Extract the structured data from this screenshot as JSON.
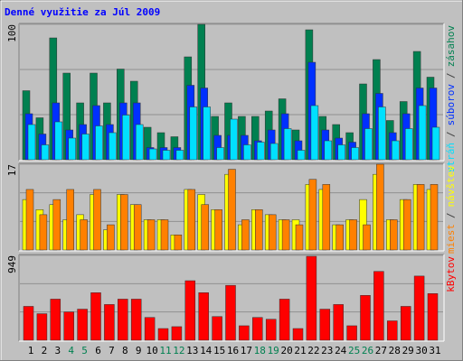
{
  "chart_data": [
    {
      "type": "bar",
      "title": "Denné využitie za Júl 2009",
      "ylim": [
        0,
        100
      ],
      "yticks": [
        100
      ],
      "legend_separator": "/",
      "series": [
        {
          "name": "stráň",
          "color": "#00e0ff",
          "values": [
            26,
            11,
            28,
            16,
            19,
            25,
            20,
            33,
            26,
            8,
            7,
            7,
            39,
            39,
            9,
            30,
            11,
            13,
            12,
            23,
            7,
            40,
            14,
            11,
            9,
            23,
            39,
            14,
            23,
            40,
            24
          ]
        },
        {
          "name": "súborov",
          "color": "#0030ff",
          "values": [
            34,
            19,
            42,
            22,
            26,
            40,
            26,
            42,
            42,
            9,
            9,
            9,
            55,
            53,
            18,
            18,
            18,
            14,
            22,
            34,
            14,
            72,
            22,
            16,
            13,
            34,
            49,
            20,
            34,
            53,
            53
          ]
        },
        {
          "name": "zásahov",
          "color": "#008050",
          "values": [
            51,
            31,
            90,
            64,
            42,
            64,
            42,
            67,
            58,
            24,
            20,
            17,
            76,
            100,
            32,
            42,
            32,
            32,
            36,
            45,
            22,
            96,
            32,
            26,
            20,
            56,
            74,
            29,
            43,
            80,
            61
          ]
        }
      ]
    },
    {
      "type": "bar",
      "ylim": [
        0,
        17
      ],
      "yticks": [
        17
      ],
      "legend_separator": "/",
      "series": [
        {
          "name": "miest",
          "color": "#ff8000",
          "values": [
            12,
            7,
            10,
            12,
            6,
            12,
            5,
            11,
            9,
            6,
            6,
            3,
            12,
            9,
            8,
            16,
            6,
            8,
            7,
            6,
            5,
            14,
            13,
            5,
            6,
            5,
            17,
            6,
            10,
            13,
            13
          ]
        },
        {
          "name": "návštev",
          "color": "#ffff00",
          "values": [
            10,
            8,
            9,
            6,
            7,
            11,
            4,
            11,
            9,
            6,
            6,
            3,
            12,
            11,
            8,
            15,
            5,
            8,
            7,
            6,
            6,
            13,
            12,
            5,
            6,
            10,
            15,
            6,
            10,
            13,
            12
          ]
        }
      ]
    },
    {
      "type": "bar",
      "ylim": [
        0,
        949
      ],
      "yticks": [
        949
      ],
      "categories": [
        "1",
        "2",
        "3",
        "4",
        "5",
        "6",
        "7",
        "8",
        "9",
        "10",
        "11",
        "12",
        "13",
        "14",
        "15",
        "16",
        "17",
        "18",
        "19",
        "20",
        "21",
        "22",
        "23",
        "24",
        "25",
        "26",
        "27",
        "28",
        "29",
        "30",
        "31"
      ],
      "category_colors": [
        "#000000",
        "#000000",
        "#000000",
        "#008050",
        "#008050",
        "#000000",
        "#000000",
        "#000000",
        "#000000",
        "#000000",
        "#008050",
        "#008050",
        "#000000",
        "#000000",
        "#000000",
        "#000000",
        "#000000",
        "#008050",
        "#008050",
        "#000000",
        "#000000",
        "#000000",
        "#000000",
        "#000000",
        "#008050",
        "#008050",
        "#000000",
        "#000000",
        "#000000",
        "#000000",
        "#000000"
      ],
      "series": [
        {
          "name": "kBytov",
          "color": "#ff0000",
          "values": [
            379,
            297,
            460,
            317,
            348,
            532,
            400,
            460,
            460,
            255,
            131,
            152,
            666,
            532,
            265,
            614,
            162,
            255,
            235,
            460,
            131,
            939,
            348,
            400,
            162,
            502,
            770,
            217,
            379,
            718,
            522
          ]
        }
      ]
    }
  ]
}
